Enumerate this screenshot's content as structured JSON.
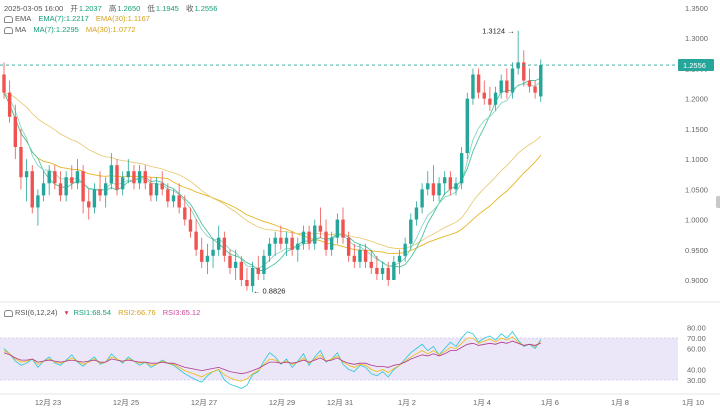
{
  "header": {
    "time": "2025-03-05 16:00",
    "open_label": "开",
    "open": "1.2037",
    "high_label": "高",
    "high": "1.2650",
    "low_label": "低",
    "low": "1.1945",
    "close_label": "收",
    "close": "1.2556",
    "ema_label": "EMA",
    "ema7": "EMA(7):1.2217",
    "ema30": "EMA(30):1.1167",
    "ma_label": "MA",
    "ma7": "MA(7):1.2295",
    "ma30": "MA(30):1.0772",
    "rsi_label": "RSI(6,12,24)",
    "rsi1": "RSI1:68.54",
    "rsi2": "RSI2:66.76",
    "rsi3": "RSI3:65.12"
  },
  "colors": {
    "up": "#26a69a",
    "down": "#ef5350",
    "ema7": "#26a69a",
    "ema30": "#ef5350",
    "ma7": "#4fc3a1",
    "ma30": "#e6b422",
    "rsi1": "#26c6da",
    "rsi2": "#f0b90b",
    "rsi3": "#b0378e",
    "rsi_band": "#e9e3f7"
  },
  "chart_data": [
    {
      "type": "candlestick",
      "y_axis_ticks": [
        "1.3500",
        "1.3000",
        "1.2500",
        "1.2000",
        "1.1500",
        "1.1000",
        "1.0500",
        "1.0000",
        "0.9500",
        "0.9000"
      ],
      "ylim": [
        0.86,
        1.36
      ],
      "x_axis_ticks": [
        "12月 23",
        "12月 25",
        "12月 27",
        "12月 29",
        "12月 31",
        "1月 2",
        "1月 4",
        "1月 6",
        "1月 8",
        "1月 10"
      ],
      "current_price_label": "1.2556",
      "annotations": [
        {
          "text": "1.3124",
          "value": 1.3124,
          "kind": "high",
          "candle": 91
        },
        {
          "text": "0.8826",
          "value": 0.8826,
          "kind": "low",
          "candle": 43
        }
      ],
      "candles": [
        [
          1.24,
          1.26,
          1.2,
          1.21
        ],
        [
          1.21,
          1.23,
          1.16,
          1.17
        ],
        [
          1.17,
          1.19,
          1.1,
          1.12
        ],
        [
          1.12,
          1.15,
          1.05,
          1.07
        ],
        [
          1.07,
          1.1,
          1.03,
          1.08
        ],
        [
          1.08,
          1.09,
          1.01,
          1.02
        ],
        [
          1.02,
          1.05,
          0.99,
          1.04
        ],
        [
          1.04,
          1.08,
          1.03,
          1.06
        ],
        [
          1.06,
          1.09,
          1.04,
          1.08
        ],
        [
          1.08,
          1.09,
          1.05,
          1.06
        ],
        [
          1.06,
          1.08,
          1.03,
          1.04
        ],
        [
          1.04,
          1.08,
          1.03,
          1.07
        ],
        [
          1.07,
          1.09,
          1.05,
          1.06
        ],
        [
          1.06,
          1.1,
          1.05,
          1.08
        ],
        [
          1.08,
          1.09,
          1.01,
          1.03
        ],
        [
          1.03,
          1.05,
          1.0,
          1.02
        ],
        [
          1.02,
          1.06,
          1.01,
          1.05
        ],
        [
          1.05,
          1.08,
          1.03,
          1.04
        ],
        [
          1.04,
          1.07,
          1.02,
          1.06
        ],
        [
          1.06,
          1.11,
          1.05,
          1.09
        ],
        [
          1.09,
          1.1,
          1.04,
          1.05
        ],
        [
          1.05,
          1.08,
          1.04,
          1.07
        ],
        [
          1.07,
          1.1,
          1.06,
          1.08
        ],
        [
          1.08,
          1.09,
          1.05,
          1.06
        ],
        [
          1.06,
          1.09,
          1.05,
          1.08
        ],
        [
          1.08,
          1.09,
          1.05,
          1.06
        ],
        [
          1.06,
          1.07,
          1.03,
          1.04
        ],
        [
          1.04,
          1.07,
          1.03,
          1.06
        ],
        [
          1.06,
          1.08,
          1.04,
          1.05
        ],
        [
          1.05,
          1.06,
          1.02,
          1.03
        ],
        [
          1.03,
          1.05,
          1.02,
          1.04
        ],
        [
          1.04,
          1.06,
          1.01,
          1.02
        ],
        [
          1.02,
          1.04,
          0.99,
          1.0
        ],
        [
          1.0,
          1.02,
          0.97,
          0.98
        ],
        [
          0.98,
          1.0,
          0.94,
          0.95
        ],
        [
          0.95,
          0.97,
          0.92,
          0.93
        ],
        [
          0.93,
          0.96,
          0.91,
          0.94
        ],
        [
          0.94,
          0.97,
          0.92,
          0.95
        ],
        [
          0.95,
          0.99,
          0.94,
          0.97
        ],
        [
          0.97,
          0.98,
          0.93,
          0.94
        ],
        [
          0.94,
          0.95,
          0.91,
          0.92
        ],
        [
          0.92,
          0.95,
          0.9,
          0.93
        ],
        [
          0.93,
          0.94,
          0.89,
          0.9
        ],
        [
          0.9,
          0.92,
          0.8826,
          0.89
        ],
        [
          0.89,
          0.93,
          0.88,
          0.92
        ],
        [
          0.92,
          0.94,
          0.9,
          0.91
        ],
        [
          0.91,
          0.95,
          0.9,
          0.94
        ],
        [
          0.94,
          0.97,
          0.93,
          0.96
        ],
        [
          0.96,
          0.98,
          0.94,
          0.97
        ],
        [
          0.97,
          0.99,
          0.95,
          0.96
        ],
        [
          0.96,
          0.98,
          0.94,
          0.97
        ],
        [
          0.97,
          0.98,
          0.94,
          0.95
        ],
        [
          0.95,
          0.97,
          0.93,
          0.96
        ],
        [
          0.96,
          0.99,
          0.95,
          0.98
        ],
        [
          0.98,
          0.99,
          0.95,
          0.96
        ],
        [
          0.96,
          1.0,
          0.95,
          0.99
        ],
        [
          0.99,
          1.02,
          0.97,
          0.98
        ],
        [
          0.98,
          1.0,
          0.94,
          0.95
        ],
        [
          0.95,
          0.98,
          0.94,
          0.97
        ],
        [
          0.97,
          1.01,
          0.96,
          1.0
        ],
        [
          1.0,
          1.02,
          0.96,
          0.97
        ],
        [
          0.97,
          0.98,
          0.93,
          0.94
        ],
        [
          0.94,
          0.96,
          0.92,
          0.93
        ],
        [
          0.93,
          0.96,
          0.92,
          0.95
        ],
        [
          0.95,
          0.96,
          0.92,
          0.93
        ],
        [
          0.93,
          0.95,
          0.91,
          0.92
        ],
        [
          0.92,
          0.94,
          0.9,
          0.91
        ],
        [
          0.91,
          0.93,
          0.9,
          0.92
        ],
        [
          0.92,
          0.93,
          0.89,
          0.9
        ],
        [
          0.9,
          0.94,
          0.9,
          0.93
        ],
        [
          0.93,
          0.95,
          0.91,
          0.94
        ],
        [
          0.94,
          0.97,
          0.93,
          0.96
        ],
        [
          0.96,
          1.01,
          0.95,
          1.0
        ],
        [
          1.0,
          1.03,
          0.99,
          1.02
        ],
        [
          1.02,
          1.06,
          1.01,
          1.05
        ],
        [
          1.05,
          1.08,
          1.04,
          1.06
        ],
        [
          1.06,
          1.09,
          1.03,
          1.04
        ],
        [
          1.04,
          1.07,
          1.03,
          1.06
        ],
        [
          1.06,
          1.08,
          1.04,
          1.07
        ],
        [
          1.07,
          1.08,
          1.04,
          1.05
        ],
        [
          1.05,
          1.07,
          1.04,
          1.06
        ],
        [
          1.06,
          1.12,
          1.05,
          1.11
        ],
        [
          1.11,
          1.21,
          1.1,
          1.2
        ],
        [
          1.2,
          1.25,
          1.19,
          1.24
        ],
        [
          1.24,
          1.25,
          1.2,
          1.21
        ],
        [
          1.21,
          1.23,
          1.19,
          1.2
        ],
        [
          1.2,
          1.22,
          1.18,
          1.19
        ],
        [
          1.19,
          1.22,
          1.18,
          1.21
        ],
        [
          1.21,
          1.24,
          1.2,
          1.23
        ],
        [
          1.23,
          1.25,
          1.2,
          1.21
        ],
        [
          1.21,
          1.26,
          1.2,
          1.25
        ],
        [
          1.25,
          1.3124,
          1.24,
          1.26
        ],
        [
          1.26,
          1.28,
          1.22,
          1.23
        ],
        [
          1.23,
          1.25,
          1.21,
          1.22
        ],
        [
          1.22,
          1.23,
          1.2,
          1.21
        ],
        [
          1.2037,
          1.265,
          1.1945,
          1.2556
        ]
      ]
    },
    {
      "type": "line",
      "name": "RSI(6,12,24)",
      "y_axis_ticks": [
        "80.00",
        "70.00",
        "60.00",
        "40.00",
        "30.00"
      ],
      "ylim": [
        18,
        82
      ],
      "band": [
        30,
        70
      ],
      "series": [
        {
          "name": "RSI1",
          "values": [
            60,
            55,
            48,
            44,
            46,
            50,
            42,
            48,
            52,
            46,
            44,
            49,
            54,
            47,
            43,
            48,
            52,
            45,
            47,
            55,
            50,
            46,
            52,
            48,
            44,
            47,
            42,
            45,
            49,
            46,
            44,
            40,
            36,
            33,
            30,
            28,
            34,
            38,
            40,
            30,
            26,
            24,
            22,
            25,
            35,
            38,
            48,
            56,
            52,
            45,
            50,
            42,
            48,
            55,
            44,
            52,
            58,
            47,
            50,
            56,
            45,
            40,
            38,
            44,
            42,
            36,
            34,
            38,
            33,
            40,
            44,
            50,
            56,
            60,
            64,
            58,
            62,
            54,
            60,
            66,
            62,
            70,
            76,
            74,
            66,
            70,
            72,
            68,
            74,
            70,
            76,
            68,
            62,
            64,
            60,
            68.54
          ]
        },
        {
          "name": "RSI2",
          "values": [
            58,
            55,
            50,
            47,
            48,
            50,
            45,
            48,
            50,
            47,
            46,
            48,
            51,
            48,
            45,
            47,
            50,
            46,
            47,
            52,
            50,
            47,
            50,
            48,
            46,
            47,
            44,
            45,
            48,
            46,
            45,
            42,
            39,
            37,
            35,
            33,
            36,
            38,
            40,
            35,
            32,
            30,
            29,
            31,
            36,
            39,
            45,
            50,
            49,
            46,
            48,
            45,
            47,
            51,
            46,
            50,
            54,
            48,
            50,
            53,
            47,
            44,
            42,
            45,
            44,
            40,
            38,
            40,
            37,
            41,
            44,
            48,
            52,
            55,
            58,
            55,
            58,
            54,
            57,
            61,
            60,
            65,
            70,
            70,
            65,
            67,
            69,
            66,
            70,
            68,
            71,
            66,
            63,
            64,
            62,
            66.76
          ]
        },
        {
          "name": "RSI3",
          "values": [
            56,
            54,
            51,
            49,
            49,
            50,
            47,
            48,
            49,
            48,
            47,
            48,
            49,
            48,
            47,
            48,
            49,
            47,
            47,
            50,
            49,
            48,
            49,
            48,
            47,
            47,
            46,
            46,
            47,
            46,
            46,
            44,
            42,
            41,
            40,
            39,
            40,
            41,
            42,
            40,
            38,
            37,
            36,
            37,
            39,
            41,
            44,
            47,
            47,
            46,
            47,
            46,
            47,
            49,
            47,
            49,
            51,
            48,
            49,
            51,
            48,
            46,
            45,
            46,
            46,
            44,
            43,
            43,
            42,
            44,
            45,
            47,
            50,
            52,
            54,
            53,
            55,
            53,
            55,
            58,
            58,
            61,
            64,
            65,
            63,
            64,
            65,
            64,
            66,
            65,
            67,
            65,
            63,
            64,
            63,
            65.12
          ]
        }
      ]
    }
  ]
}
